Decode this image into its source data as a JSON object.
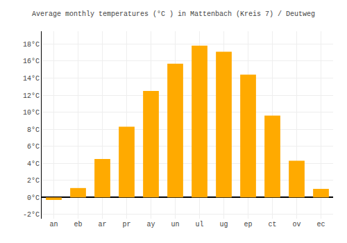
{
  "chart_data": {
    "type": "bar",
    "title": "Average monthly temperatures (°C ) in Mattenbach (Kreis 7) / Deutweg",
    "categories": [
      "an",
      "eb",
      "ar",
      "pr",
      "ay",
      "un",
      "ul",
      "ug",
      "ep",
      "ct",
      "ov",
      "ec"
    ],
    "values": [
      -0.3,
      1.1,
      4.5,
      8.3,
      12.5,
      15.7,
      17.8,
      17.1,
      14.4,
      9.6,
      4.3,
      1.0
    ],
    "color": "#FFAA00",
    "ylim": [
      -2.5,
      19.5
    ],
    "yticks": [
      {
        "value": -2,
        "label": "-2°C"
      },
      {
        "value": 0,
        "label": "0°C"
      },
      {
        "value": 2,
        "label": "2°C"
      },
      {
        "value": 4,
        "label": "4°C"
      },
      {
        "value": 6,
        "label": "6°C"
      },
      {
        "value": 8,
        "label": "8°C"
      },
      {
        "value": 10,
        "label": "10°C"
      },
      {
        "value": 12,
        "label": "12°C"
      },
      {
        "value": 14,
        "label": "14°C"
      },
      {
        "value": 16,
        "label": "16°C"
      },
      {
        "value": 18,
        "label": "18°C"
      }
    ],
    "grid": true
  }
}
